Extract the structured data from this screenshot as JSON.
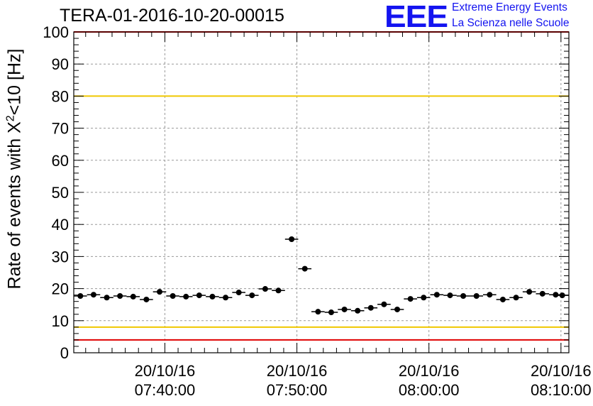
{
  "header": {
    "title": "TERA-01-2016-10-20-00015",
    "logo_text": "EEE",
    "logo_line1": "Extreme Energy Events",
    "logo_line2": "La Scienza nelle Scuole"
  },
  "colors": {
    "logo": "#1414f0",
    "upper_reference_line": "#f0c800",
    "lower_reference_line": "#e00000",
    "markers": "#000000",
    "grid": "#999999"
  },
  "chart_data": {
    "type": "scatter",
    "title": "TERA-01-2016-10-20-00015",
    "xlabel": "",
    "ylabel_prefix": "Rate of events with X",
    "ylabel_sup": "2",
    "ylabel_suffix": "<10 [Hz]",
    "ylim": [
      0,
      100
    ],
    "yticks": [
      0,
      10,
      20,
      30,
      40,
      50,
      60,
      70,
      80,
      90,
      100
    ],
    "xlim": [
      "2016-10-20 07:33:06",
      "2016-10-20 08:10:36"
    ],
    "xtick_labels": [
      {
        "time": "2016-10-20 07:40:00",
        "line1": "20/10/16",
        "line2": "07:40:00"
      },
      {
        "time": "2016-10-20 07:50:00",
        "line1": "20/10/16",
        "line2": "07:50:00"
      },
      {
        "time": "2016-10-20 08:00:00",
        "line1": "20/10/16",
        "line2": "08:00:00"
      },
      {
        "time": "2016-10-20 08:10:00",
        "line1": "20/10/16",
        "line2": "08:10:00"
      }
    ],
    "grid": true,
    "bin_width_minutes": 1,
    "points": [
      {
        "x": "2016-10-20 07:33:36",
        "y": 17.7
      },
      {
        "x": "2016-10-20 07:34:36",
        "y": 18.1
      },
      {
        "x": "2016-10-20 07:35:36",
        "y": 17.2
      },
      {
        "x": "2016-10-20 07:36:36",
        "y": 17.7
      },
      {
        "x": "2016-10-20 07:37:36",
        "y": 17.5
      },
      {
        "x": "2016-10-20 07:38:36",
        "y": 16.6
      },
      {
        "x": "2016-10-20 07:39:36",
        "y": 19.0
      },
      {
        "x": "2016-10-20 07:40:36",
        "y": 17.7
      },
      {
        "x": "2016-10-20 07:41:36",
        "y": 17.5
      },
      {
        "x": "2016-10-20 07:42:36",
        "y": 17.9
      },
      {
        "x": "2016-10-20 07:43:36",
        "y": 17.5
      },
      {
        "x": "2016-10-20 07:44:36",
        "y": 17.2
      },
      {
        "x": "2016-10-20 07:45:36",
        "y": 18.8
      },
      {
        "x": "2016-10-20 07:46:36",
        "y": 17.9
      },
      {
        "x": "2016-10-20 07:47:36",
        "y": 19.9
      },
      {
        "x": "2016-10-20 07:48:36",
        "y": 19.4
      },
      {
        "x": "2016-10-20 07:49:36",
        "y": 35.4
      },
      {
        "x": "2016-10-20 07:50:36",
        "y": 26.2
      },
      {
        "x": "2016-10-20 07:51:36",
        "y": 12.8
      },
      {
        "x": "2016-10-20 07:52:36",
        "y": 12.6
      },
      {
        "x": "2016-10-20 07:53:36",
        "y": 13.5
      },
      {
        "x": "2016-10-20 07:54:36",
        "y": 13.1
      },
      {
        "x": "2016-10-20 07:55:36",
        "y": 14.0
      },
      {
        "x": "2016-10-20 07:56:36",
        "y": 15.1
      },
      {
        "x": "2016-10-20 07:57:36",
        "y": 13.5
      },
      {
        "x": "2016-10-20 07:58:36",
        "y": 16.8
      },
      {
        "x": "2016-10-20 07:59:36",
        "y": 17.2
      },
      {
        "x": "2016-10-20 08:00:36",
        "y": 18.1
      },
      {
        "x": "2016-10-20 08:01:36",
        "y": 17.9
      },
      {
        "x": "2016-10-20 08:02:36",
        "y": 17.7
      },
      {
        "x": "2016-10-20 08:03:36",
        "y": 17.7
      },
      {
        "x": "2016-10-20 08:04:36",
        "y": 18.1
      },
      {
        "x": "2016-10-20 08:05:36",
        "y": 16.6
      },
      {
        "x": "2016-10-20 08:06:36",
        "y": 17.2
      },
      {
        "x": "2016-10-20 08:07:36",
        "y": 19.0
      },
      {
        "x": "2016-10-20 08:08:36",
        "y": 18.4
      },
      {
        "x": "2016-10-20 08:09:36",
        "y": 18.1
      },
      {
        "x": "2016-10-20 08:10:06",
        "y": 17.9
      }
    ],
    "reference_lines": [
      {
        "y": 100,
        "color": "#e00000"
      },
      {
        "y": 80,
        "color": "#f0c800"
      },
      {
        "y": 8,
        "color": "#f0c800"
      },
      {
        "y": 4,
        "color": "#e00000"
      }
    ]
  }
}
